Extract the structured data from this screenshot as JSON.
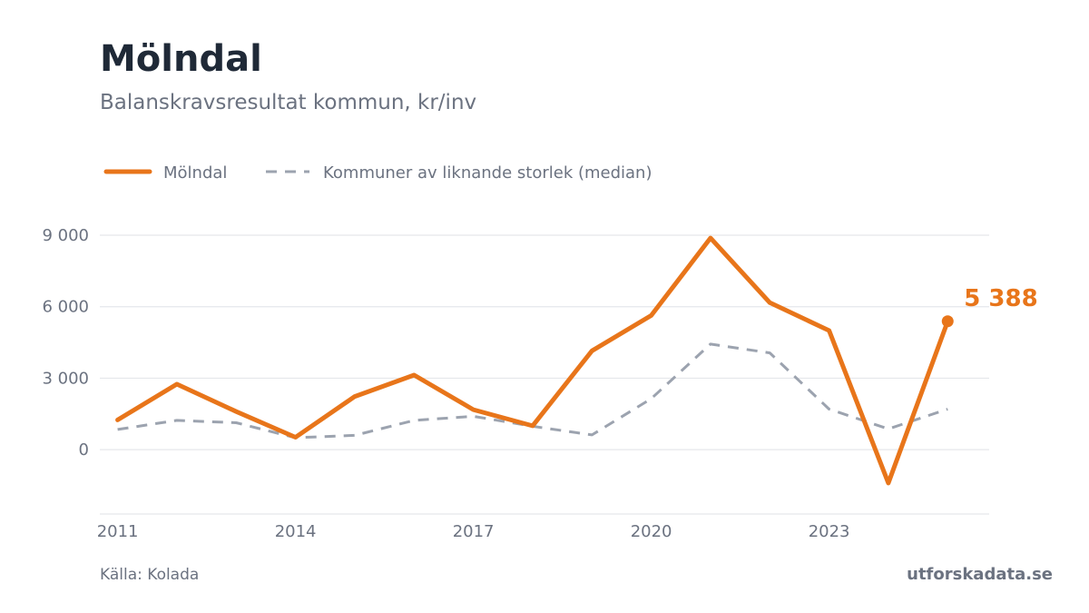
{
  "header": {
    "title": "Mölndal",
    "subtitle": "Balanskravsresultat kommun, kr/inv"
  },
  "footer": {
    "source": "Källa: Kolada",
    "brand": "utforskadata.se"
  },
  "colors": {
    "primary": "#e8751a",
    "median": "#9ca3af",
    "grid": "#e5e7eb",
    "text": "#6b7280"
  },
  "chart_data": {
    "type": "line",
    "title": "Mölndal",
    "subtitle": "Balanskravsresultat kommun, kr/inv",
    "legend_position": "top-left",
    "grid": true,
    "x": [
      2011,
      2012,
      2013,
      2014,
      2015,
      2016,
      2017,
      2018,
      2019,
      2020,
      2021,
      2022,
      2023,
      2024,
      2025
    ],
    "x_ticks": [
      2011,
      2014,
      2017,
      2020,
      2023
    ],
    "x_tick_labels": [
      "2011",
      "2014",
      "2017",
      "2020",
      "2023"
    ],
    "xlim": [
      2010.7,
      2025.7
    ],
    "y_ticks": [
      0,
      3000,
      6000,
      9000
    ],
    "y_tick_labels": [
      "0",
      "3 000",
      "6 000",
      "9 000"
    ],
    "ylim": [
      -2700,
      9000
    ],
    "series": [
      {
        "name": "Mölndal",
        "style": "solid",
        "values": [
          1250,
          2750,
          1600,
          520,
          2230,
          3130,
          1680,
          1000,
          4150,
          5630,
          8880,
          6170,
          5000,
          -1400,
          5388
        ],
        "end_label": "5 388"
      },
      {
        "name": "Kommuner av liknande storlek (median)",
        "style": "dashed",
        "values": [
          850,
          1230,
          1130,
          500,
          600,
          1230,
          1400,
          980,
          620,
          2140,
          4430,
          4060,
          1700,
          870,
          1700
        ]
      }
    ]
  }
}
